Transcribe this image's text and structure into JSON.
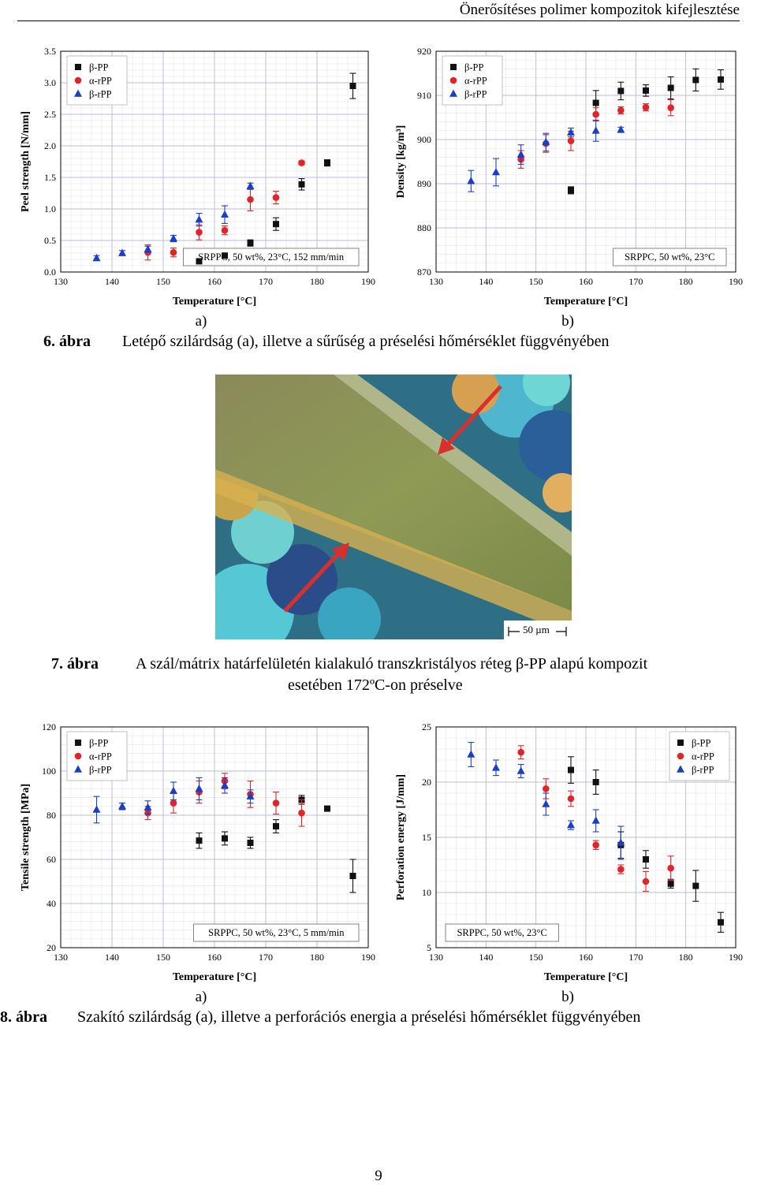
{
  "header": {
    "title": "Önerősítéses polimer kompozitok kifejlesztése"
  },
  "figure6": {
    "caption_num": "6. ábra",
    "caption_text": "Letépő szilárdság (a), illetve a sűrűség a préselési hőmérséklet függvényében",
    "sub_a": "a)",
    "sub_b": "b)"
  },
  "figure7": {
    "caption_num": "7. ábra",
    "caption_line1": "A szál/mátrix határfelületén kialakuló transzkristályos réteg β-PP alapú kompozit",
    "caption_line2": "esetében 172ºC-on préselve",
    "scale_bar": "50 µm",
    "arrow_color": "#d8302a"
  },
  "figure8": {
    "caption_num": "8. ábra",
    "caption_text": "Szakító szilárdság (a), illetve a perforációs energia a préselési hőmérséklet függvényében",
    "sub_a": "a)",
    "sub_b": "b)"
  },
  "page_number": "9",
  "series_styles": {
    "β-PP": {
      "color": "#111111",
      "marker": "square"
    },
    "α-rPP": {
      "color": "#e0242a",
      "marker": "circle"
    },
    "β-rPP": {
      "color": "#1a3fc4",
      "marker": "triangle"
    }
  },
  "chart_data": [
    {
      "id": "peel",
      "type": "scatter",
      "xlabel": "Temperature [°C]",
      "ylabel": "Peel strength [N/mm]",
      "xlim": [
        130,
        190
      ],
      "ylim": [
        0,
        3.5
      ],
      "xticks": [
        130,
        140,
        150,
        160,
        170,
        180,
        190
      ],
      "yticks": [
        0.0,
        0.5,
        1.0,
        1.5,
        2.0,
        2.5,
        3.0,
        3.5
      ],
      "ytick_labels": [
        "0.0",
        "0.5",
        "1.0",
        "1.5",
        "2.0",
        "2.5",
        "3.0",
        "3.5"
      ],
      "grid": true,
      "legend_position": "top-left",
      "annotation": "SRPPC, 50 wt%, 23°C, 152 mm/min",
      "annotation_position": "bottom-right",
      "series": [
        {
          "name": "β-PP",
          "points": [
            [
              157,
              0.17,
              0
            ],
            [
              162,
              0.26,
              0
            ],
            [
              167,
              0.46,
              0.05
            ],
            [
              172,
              0.76,
              0.1
            ],
            [
              177,
              1.39,
              0.09
            ],
            [
              182,
              1.73,
              0.05
            ],
            [
              187,
              2.95,
              0.2
            ]
          ]
        },
        {
          "name": "α-rPP",
          "points": [
            [
              147,
              0.31,
              0.12
            ],
            [
              152,
              0.31,
              0.07
            ],
            [
              157,
              0.63,
              0.12
            ],
            [
              162,
              0.66,
              0.07
            ],
            [
              167,
              1.15,
              0.18
            ],
            [
              172,
              1.18,
              0.1
            ],
            [
              177,
              1.73,
              0.03
            ]
          ]
        },
        {
          "name": "β-rPP",
          "points": [
            [
              137,
              0.22,
              0.04
            ],
            [
              142,
              0.3,
              0.04
            ],
            [
              147,
              0.36,
              0.05
            ],
            [
              152,
              0.53,
              0.05
            ],
            [
              157,
              0.83,
              0.1
            ],
            [
              162,
              0.91,
              0.14
            ],
            [
              167,
              1.36,
              0.05
            ]
          ]
        }
      ]
    },
    {
      "id": "density",
      "type": "scatter",
      "xlabel": "Temperature [°C]",
      "ylabel": "Density [kg/m³]",
      "xlim": [
        130,
        190
      ],
      "ylim": [
        870,
        920
      ],
      "xticks": [
        130,
        140,
        150,
        160,
        170,
        180,
        190
      ],
      "yticks": [
        870,
        880,
        890,
        900,
        910,
        920
      ],
      "ytick_labels": [
        "870",
        "880",
        "890",
        "900",
        "910",
        "920"
      ],
      "grid": true,
      "legend_position": "top-left",
      "annotation": "SRPPC, 50 wt%, 23°C",
      "annotation_position": "bottom-right",
      "series": [
        {
          "name": "β-PP",
          "points": [
            [
              157,
              888.5,
              0.8
            ],
            [
              162,
              908.3,
              2.8
            ],
            [
              167,
              911,
              2
            ],
            [
              172,
              911.1,
              1.3
            ],
            [
              177,
              911.7,
              2.5
            ],
            [
              182,
              913.5,
              2.5
            ],
            [
              187,
              913.6,
              2.2
            ]
          ]
        },
        {
          "name": "α-rPP",
          "points": [
            [
              147,
              895.5,
              2
            ],
            [
              152,
              899.1,
              2
            ],
            [
              157,
              899.7,
              2.2
            ],
            [
              162,
              905.7,
              1.5
            ],
            [
              167,
              906.6,
              0.8
            ],
            [
              172,
              907.3,
              0.8
            ],
            [
              177,
              907.2,
              1.8
            ]
          ]
        },
        {
          "name": "β-rPP",
          "points": [
            [
              137,
              890.6,
              2.4
            ],
            [
              142,
              892.6,
              3.1
            ],
            [
              147,
              896.6,
              2.2
            ],
            [
              152,
              899.4,
              2
            ],
            [
              157,
              901.6,
              1
            ],
            [
              162,
              902,
              2.4
            ],
            [
              167,
              902.2,
              0.6
            ]
          ]
        }
      ]
    },
    {
      "id": "tensile",
      "type": "scatter",
      "xlabel": "Temperature [°C]",
      "ylabel": "Tensile strength [MPa]",
      "xlim": [
        130,
        190
      ],
      "ylim": [
        20,
        120
      ],
      "xticks": [
        130,
        140,
        150,
        160,
        170,
        180,
        190
      ],
      "yticks": [
        20,
        40,
        60,
        80,
        100,
        120
      ],
      "ytick_labels": [
        "20",
        "40",
        "60",
        "80",
        "100",
        "120"
      ],
      "grid": true,
      "legend_position": "top-left",
      "annotation": "SRPPC, 50 wt%, 23°C, 5 mm/min",
      "annotation_position": "bottom-right",
      "series": [
        {
          "name": "β-PP",
          "points": [
            [
              157,
              68.5,
              3.5
            ],
            [
              162,
              69.5,
              3
            ],
            [
              167,
              67.5,
              2.5
            ],
            [
              172,
              75,
              3
            ],
            [
              177,
              87,
              2
            ],
            [
              182,
              83,
              0
            ],
            [
              187,
              52.5,
              7.5
            ]
          ]
        },
        {
          "name": "α-rPP",
          "points": [
            [
              147,
              81,
              3
            ],
            [
              152,
              85.5,
              4.5
            ],
            [
              157,
              90.5,
              5
            ],
            [
              162,
              95.5,
              3.5
            ],
            [
              167,
              89.5,
              6
            ],
            [
              172,
              85.5,
              5
            ],
            [
              177,
              81,
              6
            ]
          ]
        },
        {
          "name": "β-rPP",
          "points": [
            [
              137,
              82.5,
              6
            ],
            [
              142,
              84,
              1.5
            ],
            [
              147,
              83.5,
              3
            ],
            [
              152,
              91,
              4
            ],
            [
              157,
              92,
              5
            ],
            [
              162,
              93.5,
              3.5
            ],
            [
              167,
              88.5,
              3
            ]
          ]
        }
      ]
    },
    {
      "id": "perforation",
      "type": "scatter",
      "xlabel": "Temperature [°C]",
      "ylabel": "Perforation energy [J/mm]",
      "xlim": [
        130,
        190
      ],
      "ylim": [
        5,
        25
      ],
      "xticks": [
        130,
        140,
        150,
        160,
        170,
        180,
        190
      ],
      "yticks": [
        5,
        10,
        15,
        20,
        25
      ],
      "ytick_labels": [
        "5",
        "10",
        "15",
        "20",
        "25"
      ],
      "grid": true,
      "legend_position": "top-right",
      "annotation": "SRPPC, 50 wt%, 23°C",
      "annotation_position": "bottom-left",
      "series": [
        {
          "name": "β-PP",
          "points": [
            [
              157,
              21.1,
              1.2
            ],
            [
              162,
              20,
              1.1
            ],
            [
              167,
              14.3,
              1.2
            ],
            [
              172,
              13,
              0.8
            ],
            [
              177,
              10.8,
              0.4
            ],
            [
              182,
              10.6,
              1.4
            ],
            [
              187,
              7.3,
              0.9
            ]
          ]
        },
        {
          "name": "α-rPP",
          "points": [
            [
              147,
              22.7,
              0.6
            ],
            [
              152,
              19.4,
              0.9
            ],
            [
              157,
              18.5,
              0.7
            ],
            [
              162,
              14.3,
              0.4
            ],
            [
              167,
              12.1,
              0.4
            ],
            [
              172,
              11,
              0.9
            ],
            [
              177,
              12.2,
              1.1
            ]
          ]
        },
        {
          "name": "β-rPP",
          "points": [
            [
              137,
              22.5,
              1.1
            ],
            [
              142,
              21.3,
              0.7
            ],
            [
              147,
              21,
              0.6
            ],
            [
              152,
              18,
              1
            ],
            [
              157,
              16.1,
              0.4
            ],
            [
              162,
              16.5,
              1
            ],
            [
              167,
              14.5,
              1.5
            ]
          ]
        }
      ]
    }
  ]
}
